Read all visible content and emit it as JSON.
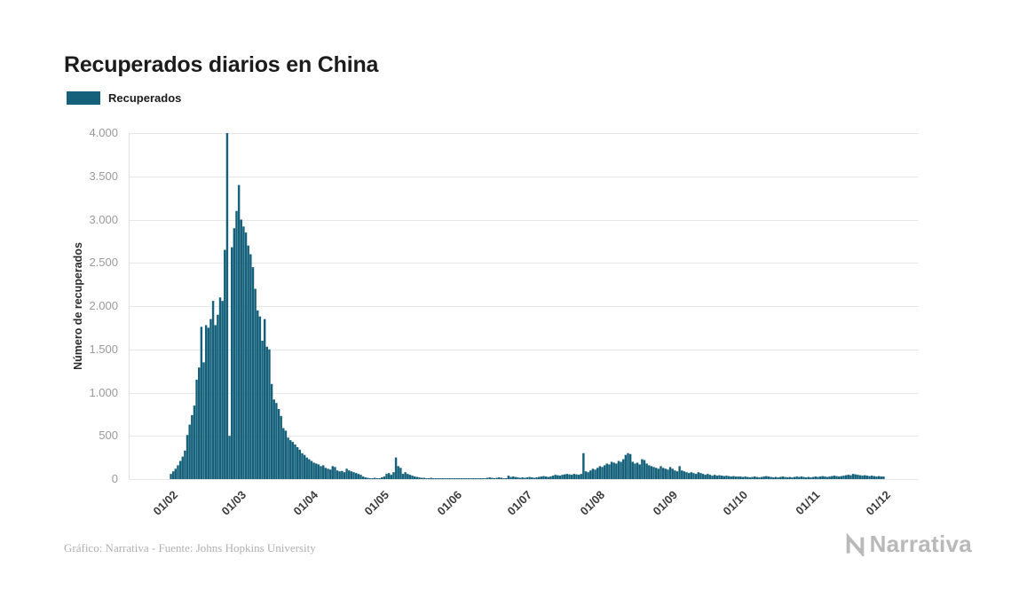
{
  "page": {
    "title": "Recuperados diarios en China",
    "footer_credit": "Gráfico: Narrativa - Fuente: Johns Hopkins University",
    "brand": "Narrativa"
  },
  "legend": {
    "label": "Recuperados",
    "color": "#15607a"
  },
  "chart_data": {
    "type": "bar",
    "title": "Recuperados diarios en China",
    "xlabel": "",
    "ylabel": "Número de recuperados",
    "ylim": [
      0,
      4000
    ],
    "grid": "horizontal",
    "legend_position": "top-left",
    "y_ticks": [
      0,
      500,
      1000,
      1500,
      2000,
      2500,
      3000,
      3500,
      4000
    ],
    "y_tick_labels": [
      "0",
      "500",
      "1.000",
      "1.500",
      "2.000",
      "2.500",
      "3.000",
      "3.500",
      "4.000"
    ],
    "x_tick_labels": [
      "01/02",
      "01/03",
      "01/04",
      "01/05",
      "01/06",
      "01/07",
      "01/08",
      "01/09",
      "01/10",
      "01/11",
      "01/12"
    ],
    "x_tick_day_offsets": [
      0,
      29,
      60,
      90,
      121,
      151,
      182,
      213,
      243,
      274,
      304
    ],
    "series": [
      {
        "name": "Recuperados",
        "color": "#15607a",
        "start_date": "2020-02-01",
        "cadence": "daily",
        "values": [
          60,
          90,
          120,
          160,
          210,
          260,
          330,
          510,
          630,
          740,
          850,
          1150,
          1290,
          1760,
          1350,
          1780,
          1750,
          1850,
          2060,
          1780,
          1900,
          2100,
          2060,
          2650,
          4000,
          500,
          2680,
          2900,
          3100,
          3400,
          3000,
          2920,
          2850,
          2700,
          2600,
          2450,
          2200,
          1950,
          1880,
          1600,
          1850,
          1530,
          1500,
          1100,
          920,
          880,
          810,
          730,
          590,
          560,
          480,
          450,
          430,
          400,
          370,
          340,
          300,
          280,
          250,
          230,
          210,
          190,
          180,
          170,
          150,
          160,
          130,
          120,
          110,
          150,
          140,
          100,
          90,
          95,
          80,
          120,
          100,
          90,
          80,
          70,
          60,
          50,
          30,
          20,
          15,
          10,
          10,
          15,
          10,
          10,
          20,
          30,
          60,
          70,
          50,
          80,
          250,
          150,
          130,
          60,
          80,
          60,
          50,
          40,
          30,
          25,
          20,
          15,
          15,
          10,
          10,
          15,
          10,
          10,
          10,
          5,
          5,
          10,
          5,
          5,
          5,
          5,
          5,
          10,
          5,
          5,
          10,
          8,
          5,
          5,
          5,
          8,
          5,
          5,
          10,
          15,
          20,
          15,
          10,
          15,
          20,
          15,
          10,
          10,
          40,
          25,
          30,
          25,
          20,
          15,
          20,
          15,
          20,
          25,
          20,
          15,
          20,
          25,
          30,
          35,
          30,
          25,
          30,
          40,
          50,
          45,
          40,
          50,
          55,
          60,
          55,
          50,
          60,
          55,
          50,
          60,
          300,
          90,
          80,
          100,
          120,
          110,
          130,
          150,
          140,
          160,
          180,
          170,
          200,
          190,
          180,
          210,
          200,
          230,
          280,
          300,
          290,
          200,
          180,
          190,
          170,
          230,
          220,
          180,
          160,
          150,
          140,
          130,
          120,
          150,
          130,
          120,
          110,
          140,
          120,
          100,
          90,
          150,
          100,
          90,
          80,
          70,
          80,
          70,
          60,
          80,
          70,
          60,
          50,
          60,
          50,
          40,
          50,
          40,
          45,
          40,
          35,
          40,
          35,
          30,
          35,
          30,
          30,
          30,
          25,
          30,
          25,
          20,
          25,
          30,
          25,
          20,
          25,
          30,
          35,
          30,
          25,
          20,
          25,
          20,
          25,
          30,
          25,
          20,
          25,
          20,
          25,
          30,
          25,
          30,
          25,
          20,
          25,
          20,
          25,
          30,
          25,
          30,
          35,
          30,
          25,
          30,
          35,
          40,
          35,
          30,
          35,
          40,
          45,
          50,
          45,
          60,
          55,
          50,
          45,
          40,
          45,
          40,
          35,
          40,
          35,
          30,
          35,
          30,
          30
        ]
      }
    ]
  }
}
